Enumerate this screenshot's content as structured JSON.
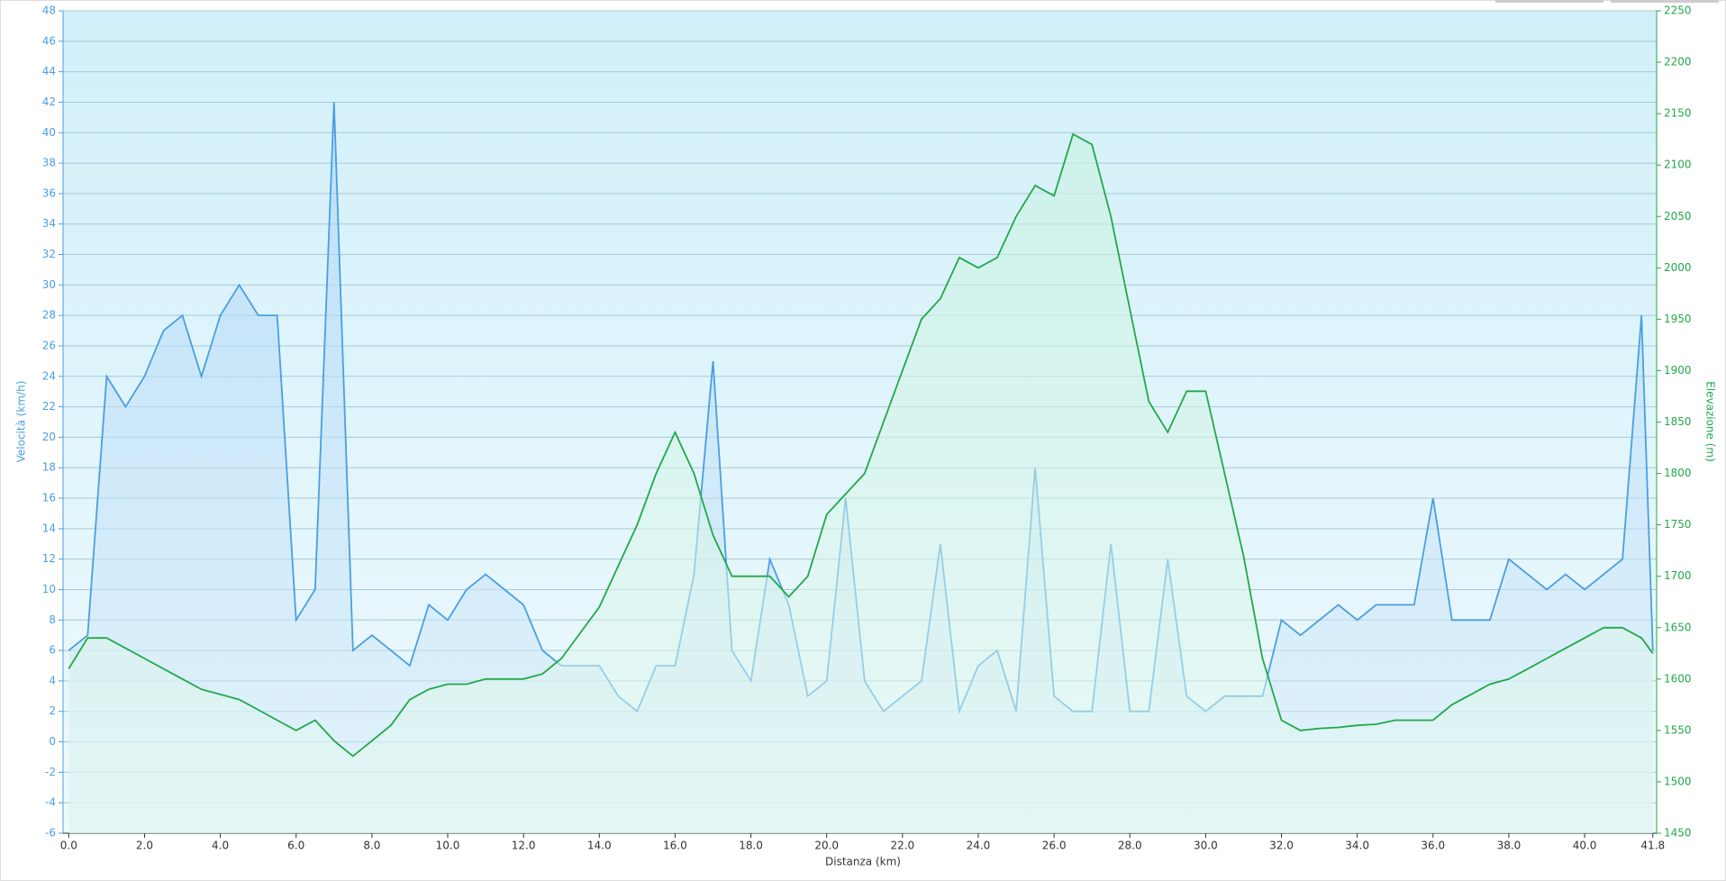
{
  "chart_data": {
    "type": "line",
    "x_label": "Distanza  (km)",
    "y_label": "Velocità (km/h)",
    "y2_label": "Elevazione (m)",
    "x": [
      0,
      0.5,
      1,
      1.5,
      2,
      2.5,
      3,
      3.5,
      4,
      4.5,
      5,
      5.5,
      6,
      6.5,
      7,
      7.5,
      8,
      8.5,
      9,
      9.5,
      10,
      10.5,
      11,
      11.5,
      12,
      12.5,
      13,
      13.5,
      14,
      14.5,
      15,
      15.5,
      16,
      16.5,
      17,
      17.5,
      18,
      18.5,
      19,
      19.5,
      20,
      20.5,
      21,
      21.5,
      22,
      22.5,
      23,
      23.5,
      24,
      24.5,
      25,
      25.5,
      26,
      26.5,
      27,
      27.5,
      28,
      28.5,
      29,
      29.5,
      30,
      30.5,
      31,
      31.5,
      32,
      32.5,
      33,
      33.5,
      34,
      34.5,
      35,
      35.5,
      36,
      36.5,
      37,
      37.5,
      38,
      38.5,
      39,
      39.5,
      40,
      40.5,
      41,
      41.5,
      41.8
    ],
    "series": [
      {
        "name": "Velocità",
        "color": "#4a9fe0",
        "axis": "y",
        "values": [
          6,
          7,
          24,
          22,
          24,
          27,
          28,
          24,
          28,
          30,
          28,
          28,
          8,
          10,
          42,
          6,
          7,
          6,
          5,
          9,
          8,
          10,
          11,
          10,
          9,
          6,
          5,
          5,
          5,
          3,
          2,
          5,
          5,
          11,
          25,
          6,
          4,
          12,
          9,
          3,
          4,
          16,
          4,
          2,
          3,
          4,
          13,
          2,
          5,
          6,
          2,
          18,
          3,
          2,
          2,
          13,
          2,
          2,
          12,
          3,
          2,
          3,
          3,
          3,
          8,
          7,
          8,
          9,
          8,
          9,
          9,
          9,
          16,
          8,
          8,
          8,
          12,
          11,
          10,
          11,
          10,
          11,
          12,
          28,
          6
        ]
      },
      {
        "name": "Elevazione",
        "color": "#22a84a",
        "axis": "y2",
        "values": [
          1610,
          1640,
          1640,
          1630,
          1620,
          1610,
          1600,
          1590,
          1585,
          1580,
          1570,
          1560,
          1550,
          1560,
          1540,
          1525,
          1540,
          1555,
          1580,
          1590,
          1595,
          1595,
          1600,
          1600,
          1600,
          1605,
          1620,
          1645,
          1670,
          1710,
          1750,
          1800,
          1840,
          1800,
          1740,
          1700,
          1700,
          1700,
          1680,
          1700,
          1760,
          1780,
          1800,
          1850,
          1900,
          1950,
          1970,
          2010,
          2000,
          2010,
          2050,
          2080,
          2070,
          2130,
          2120,
          2050,
          1960,
          1870,
          1840,
          1880,
          1880,
          1800,
          1720,
          1620,
          1560,
          1550,
          1552,
          1553,
          1555,
          1556,
          1560,
          1560,
          1560,
          1575,
          1585,
          1595,
          1600,
          1610,
          1620,
          1630,
          1640,
          1650,
          1650,
          1640,
          1625
        ]
      }
    ],
    "xlim": [
      -0.15,
      41.9
    ],
    "xticks": [
      {
        "value": 0,
        "label": "0.0"
      },
      {
        "value": 2,
        "label": "2.0"
      },
      {
        "value": 4,
        "label": "4.0"
      },
      {
        "value": 6,
        "label": "6.0"
      },
      {
        "value": 8,
        "label": "8.0"
      },
      {
        "value": 10,
        "label": "10.0"
      },
      {
        "value": 12,
        "label": "12.0"
      },
      {
        "value": 14,
        "label": "14.0"
      },
      {
        "value": 16,
        "label": "16.0"
      },
      {
        "value": 18,
        "label": "18.0"
      },
      {
        "value": 20,
        "label": "20.0"
      },
      {
        "value": 22,
        "label": "22.0"
      },
      {
        "value": 24,
        "label": "24.0"
      },
      {
        "value": 26,
        "label": "26.0"
      },
      {
        "value": 28,
        "label": "28.0"
      },
      {
        "value": 30,
        "label": "30.0"
      },
      {
        "value": 32,
        "label": "32.0"
      },
      {
        "value": 34,
        "label": "34.0"
      },
      {
        "value": 36,
        "label": "36.0"
      },
      {
        "value": 38,
        "label": "38.0"
      },
      {
        "value": 40,
        "label": "40.0"
      },
      41.8
    ],
    "ylim": [
      -6,
      48
    ],
    "yticks": [
      -6,
      -4,
      -2,
      0,
      2,
      4,
      6,
      8,
      10,
      12,
      14,
      16,
      18,
      20,
      22,
      24,
      26,
      28,
      30,
      32,
      34,
      36,
      38,
      40,
      42,
      44,
      46,
      48
    ],
    "y2lim": [
      1450,
      2250
    ],
    "y2ticks": [
      1450,
      1500,
      1550,
      1600,
      1650,
      1700,
      1750,
      1800,
      1850,
      1900,
      1950,
      2000,
      2050,
      2100,
      2150,
      2200,
      2250
    ],
    "grid": true
  }
}
